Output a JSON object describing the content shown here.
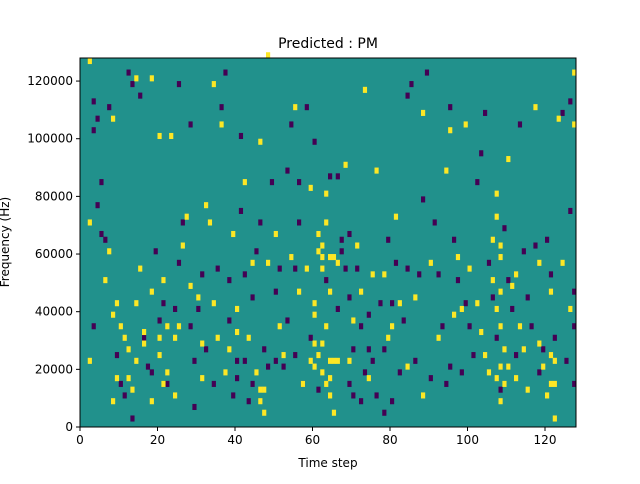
{
  "chart_data": {
    "type": "heatmap",
    "title": "Predicted : PM",
    "xlabel": "Time step",
    "ylabel": "Frequency (Hz)",
    "xlim": [
      0,
      128
    ],
    "ylim": [
      0,
      128000
    ],
    "x_ticks": [
      0,
      20,
      40,
      60,
      80,
      100,
      120
    ],
    "y_ticks": [
      0,
      20000,
      40000,
      60000,
      80000,
      100000,
      120000
    ],
    "x_tick_labels": [
      "0",
      "20",
      "40",
      "60",
      "80",
      "100",
      "120"
    ],
    "y_tick_labels": [
      "0",
      "20000",
      "40000",
      "60000",
      "80000",
      "100000",
      "120000"
    ],
    "colors": {
      "background": "#21918c",
      "high": "#fde725",
      "low": "#440154"
    },
    "high_points": [
      [
        2,
        126000
      ],
      [
        2,
        70000
      ],
      [
        2,
        22000
      ],
      [
        6,
        50000
      ],
      [
        7,
        60000
      ],
      [
        8,
        106000
      ],
      [
        8,
        38000
      ],
      [
        8,
        8000
      ],
      [
        9,
        42000
      ],
      [
        10,
        34000
      ],
      [
        9,
        16000
      ],
      [
        11,
        30000
      ],
      [
        12,
        16000
      ],
      [
        12,
        26000
      ],
      [
        13,
        12000
      ],
      [
        14,
        120000
      ],
      [
        14,
        42000
      ],
      [
        14,
        22000
      ],
      [
        15,
        54000
      ],
      [
        16,
        28000
      ],
      [
        16,
        32000
      ],
      [
        18,
        8000
      ],
      [
        18,
        46000
      ],
      [
        18,
        120000
      ],
      [
        20,
        100000
      ],
      [
        20,
        30000
      ],
      [
        20,
        24000
      ],
      [
        21,
        14000
      ],
      [
        21,
        50000
      ],
      [
        22,
        18000
      ],
      [
        22,
        34000
      ],
      [
        23,
        100000
      ],
      [
        24,
        30000
      ],
      [
        24,
        10000
      ],
      [
        25,
        34000
      ],
      [
        26,
        62000
      ],
      [
        27,
        72000
      ],
      [
        28,
        48000
      ],
      [
        30,
        44000
      ],
      [
        31,
        28000
      ],
      [
        31,
        16000
      ],
      [
        32,
        76000
      ],
      [
        33,
        70000
      ],
      [
        34,
        118000
      ],
      [
        34,
        42000
      ],
      [
        35,
        30000
      ],
      [
        36,
        104000
      ],
      [
        37,
        18000
      ],
      [
        38,
        26000
      ],
      [
        39,
        66000
      ],
      [
        40,
        40000
      ],
      [
        40,
        32000
      ],
      [
        42,
        84000
      ],
      [
        43,
        30000
      ],
      [
        44,
        56000
      ],
      [
        45,
        18000
      ],
      [
        46,
        98000
      ],
      [
        46,
        12000
      ],
      [
        46,
        8000
      ],
      [
        47,
        12000
      ],
      [
        47,
        4000
      ],
      [
        48,
        56000
      ],
      [
        48,
        128000
      ],
      [
        50,
        66000
      ],
      [
        51,
        34000
      ],
      [
        52,
        24000
      ],
      [
        54,
        58000
      ],
      [
        55,
        110000
      ],
      [
        56,
        46000
      ],
      [
        57,
        14000
      ],
      [
        58,
        54000
      ],
      [
        59,
        82000
      ],
      [
        59,
        22000
      ],
      [
        60,
        42000
      ],
      [
        60,
        38000
      ],
      [
        61,
        60000
      ],
      [
        62,
        58000
      ],
      [
        62,
        54000
      ],
      [
        62,
        18000
      ],
      [
        63,
        70000
      ],
      [
        63,
        80000
      ],
      [
        63,
        14000
      ],
      [
        64,
        58000
      ],
      [
        64,
        46000
      ],
      [
        64,
        10000
      ],
      [
        65,
        4000
      ],
      [
        66,
        56000
      ],
      [
        68,
        90000
      ],
      [
        69,
        22000
      ],
      [
        70,
        36000
      ],
      [
        71,
        62000
      ],
      [
        72,
        46000
      ],
      [
        73,
        116000
      ],
      [
        74,
        16000
      ],
      [
        75,
        52000
      ],
      [
        76,
        88000
      ],
      [
        78,
        52000
      ],
      [
        79,
        30000
      ],
      [
        80,
        34000
      ],
      [
        81,
        72000
      ],
      [
        82,
        42000
      ],
      [
        84,
        20000
      ],
      [
        86,
        44000
      ],
      [
        88,
        10000
      ],
      [
        88,
        108000
      ],
      [
        90,
        56000
      ],
      [
        92,
        30000
      ],
      [
        94,
        88000
      ],
      [
        95,
        102000
      ],
      [
        96,
        38000
      ],
      [
        97,
        58000
      ],
      [
        98,
        40000
      ],
      [
        99,
        104000
      ],
      [
        100,
        54000
      ],
      [
        102,
        42000
      ],
      [
        103,
        32000
      ],
      [
        104,
        24000
      ],
      [
        105,
        18000
      ],
      [
        106,
        64000
      ],
      [
        106,
        50000
      ],
      [
        107,
        80000
      ],
      [
        107,
        40000
      ],
      [
        108,
        58000
      ],
      [
        108,
        34000
      ],
      [
        108,
        8000
      ],
      [
        109,
        26000
      ],
      [
        110,
        92000
      ],
      [
        110,
        20000
      ],
      [
        111,
        48000
      ],
      [
        112,
        16000
      ],
      [
        112,
        52000
      ],
      [
        113,
        34000
      ],
      [
        114,
        26000
      ],
      [
        115,
        12000
      ],
      [
        117,
        110000
      ],
      [
        118,
        28000
      ],
      [
        118,
        56000
      ],
      [
        119,
        20000
      ],
      [
        120,
        10000
      ],
      [
        121,
        24000
      ],
      [
        121,
        46000
      ],
      [
        122,
        2000
      ],
      [
        123,
        106000
      ],
      [
        124,
        56000
      ],
      [
        126,
        40000
      ],
      [
        127,
        122000
      ],
      [
        127,
        104000
      ],
      [
        60,
        28000
      ],
      [
        61,
        24000
      ],
      [
        62,
        28000
      ],
      [
        63,
        34000
      ],
      [
        60,
        20000
      ],
      [
        61,
        66000
      ],
      [
        62,
        62000
      ],
      [
        64,
        16000
      ],
      [
        64,
        22000
      ],
      [
        65,
        58000
      ],
      [
        65,
        22000
      ],
      [
        66,
        22000
      ],
      [
        107,
        72000
      ],
      [
        108,
        62000
      ],
      [
        108,
        46000
      ],
      [
        107,
        16000
      ],
      [
        109,
        14000
      ],
      [
        108,
        20000
      ],
      [
        121,
        14000
      ],
      [
        122,
        22000
      ],
      [
        122,
        14000
      ]
    ],
    "low_points": [
      [
        3,
        112000
      ],
      [
        3,
        102000
      ],
      [
        3,
        34000
      ],
      [
        4,
        106000
      ],
      [
        4,
        76000
      ],
      [
        5,
        84000
      ],
      [
        5,
        66000
      ],
      [
        6,
        64000
      ],
      [
        7,
        110000
      ],
      [
        9,
        24000
      ],
      [
        10,
        14000
      ],
      [
        11,
        10000
      ],
      [
        12,
        122000
      ],
      [
        13,
        118000
      ],
      [
        13,
        2000
      ],
      [
        15,
        114000
      ],
      [
        16,
        30000
      ],
      [
        17,
        20000
      ],
      [
        18,
        18000
      ],
      [
        19,
        60000
      ],
      [
        20,
        36000
      ],
      [
        21,
        42000
      ],
      [
        22,
        14000
      ],
      [
        24,
        40000
      ],
      [
        25,
        118000
      ],
      [
        25,
        56000
      ],
      [
        26,
        70000
      ],
      [
        28,
        104000
      ],
      [
        28,
        34000
      ],
      [
        29,
        22000
      ],
      [
        29,
        6000
      ],
      [
        30,
        40000
      ],
      [
        31,
        52000
      ],
      [
        32,
        26000
      ],
      [
        34,
        14000
      ],
      [
        35,
        54000
      ],
      [
        36,
        110000
      ],
      [
        37,
        122000
      ],
      [
        38,
        36000
      ],
      [
        38,
        50000
      ],
      [
        39,
        10000
      ],
      [
        40,
        16000
      ],
      [
        40,
        22000
      ],
      [
        41,
        74000
      ],
      [
        41,
        100000
      ],
      [
        42,
        22000
      ],
      [
        42,
        52000
      ],
      [
        43,
        8000
      ],
      [
        44,
        44000
      ],
      [
        44,
        14000
      ],
      [
        45,
        60000
      ],
      [
        46,
        70000
      ],
      [
        47,
        26000
      ],
      [
        48,
        20000
      ],
      [
        49,
        84000
      ],
      [
        50,
        22000
      ],
      [
        50,
        46000
      ],
      [
        51,
        54000
      ],
      [
        52,
        20000
      ],
      [
        53,
        88000
      ],
      [
        53,
        36000
      ],
      [
        54,
        104000
      ],
      [
        55,
        54000
      ],
      [
        55,
        24000
      ],
      [
        56,
        70000
      ],
      [
        56,
        84000
      ],
      [
        57,
        14000
      ],
      [
        58,
        110000
      ],
      [
        59,
        30000
      ],
      [
        60,
        98000
      ],
      [
        61,
        12000
      ],
      [
        63,
        50000
      ],
      [
        64,
        86000
      ],
      [
        66,
        86000
      ],
      [
        66,
        40000
      ],
      [
        67,
        64000
      ],
      [
        67,
        60000
      ],
      [
        68,
        54000
      ],
      [
        69,
        66000
      ],
      [
        69,
        44000
      ],
      [
        69,
        14000
      ],
      [
        70,
        10000
      ],
      [
        70,
        26000
      ],
      [
        71,
        54000
      ],
      [
        72,
        8000
      ],
      [
        72,
        34000
      ],
      [
        73,
        18000
      ],
      [
        74,
        26000
      ],
      [
        74,
        38000
      ],
      [
        75,
        22000
      ],
      [
        76,
        10000
      ],
      [
        77,
        42000
      ],
      [
        78,
        26000
      ],
      [
        78,
        4000
      ],
      [
        79,
        64000
      ],
      [
        80,
        42000
      ],
      [
        80,
        8000
      ],
      [
        81,
        56000
      ],
      [
        82,
        18000
      ],
      [
        83,
        36000
      ],
      [
        84,
        54000
      ],
      [
        84,
        114000
      ],
      [
        85,
        118000
      ],
      [
        86,
        22000
      ],
      [
        87,
        52000
      ],
      [
        88,
        78000
      ],
      [
        89,
        122000
      ],
      [
        90,
        16000
      ],
      [
        91,
        70000
      ],
      [
        92,
        52000
      ],
      [
        93,
        34000
      ],
      [
        94,
        14000
      ],
      [
        95,
        110000
      ],
      [
        95,
        20000
      ],
      [
        96,
        64000
      ],
      [
        97,
        50000
      ],
      [
        98,
        18000
      ],
      [
        99,
        42000
      ],
      [
        100,
        34000
      ],
      [
        101,
        24000
      ],
      [
        102,
        84000
      ],
      [
        103,
        94000
      ],
      [
        104,
        108000
      ],
      [
        105,
        56000
      ],
      [
        106,
        44000
      ],
      [
        107,
        30000
      ],
      [
        108,
        12000
      ],
      [
        109,
        68000
      ],
      [
        110,
        50000
      ],
      [
        111,
        40000
      ],
      [
        112,
        24000
      ],
      [
        113,
        104000
      ],
      [
        114,
        60000
      ],
      [
        115,
        44000
      ],
      [
        116,
        34000
      ],
      [
        117,
        62000
      ],
      [
        118,
        18000
      ],
      [
        119,
        26000
      ],
      [
        120,
        64000
      ],
      [
        121,
        52000
      ],
      [
        122,
        30000
      ],
      [
        124,
        108000
      ],
      [
        125,
        22000
      ],
      [
        126,
        74000
      ],
      [
        126,
        112000
      ],
      [
        127,
        46000
      ],
      [
        127,
        14000
      ],
      [
        127,
        34000
      ]
    ]
  }
}
